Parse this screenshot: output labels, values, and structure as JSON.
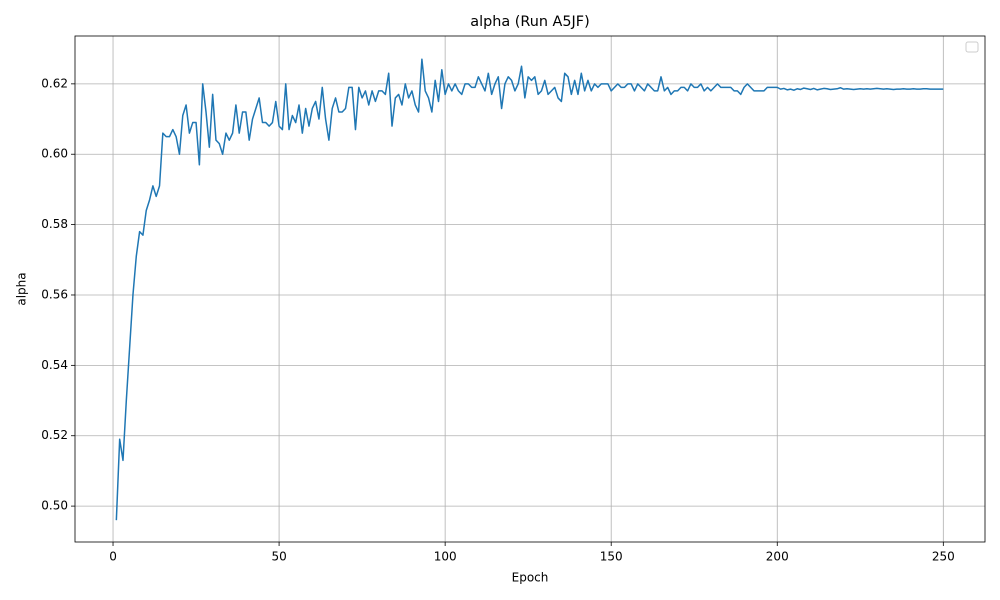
{
  "chart_data": {
    "type": "line",
    "title": "alpha (Run A5JF)",
    "x_label": "Epoch",
    "y_label": "alpha",
    "color": "#1f77b4",
    "grid": true,
    "xlim": [
      -11.45,
      262.55
    ],
    "ylim": [
      0.4898,
      0.6336
    ],
    "xticks": [
      0,
      50,
      100,
      150,
      200,
      250
    ],
    "yticks": [
      {
        "value": 0.5,
        "label": "0.50"
      },
      0.52,
      0.54,
      0.56,
      0.58,
      {
        "value": 0.6,
        "label": "0.60"
      },
      0.62
    ],
    "x": [
      1,
      2,
      3,
      4,
      5,
      6,
      7,
      8,
      9,
      10,
      11,
      12,
      13,
      14,
      15,
      16,
      17,
      18,
      19,
      20,
      21,
      22,
      23,
      24,
      25,
      26,
      27,
      28,
      29,
      30,
      31,
      32,
      33,
      34,
      35,
      36,
      37,
      38,
      39,
      40,
      41,
      42,
      43,
      44,
      45,
      46,
      47,
      48,
      49,
      50,
      51,
      52,
      53,
      54,
      55,
      56,
      57,
      58,
      59,
      60,
      61,
      62,
      63,
      64,
      65,
      66,
      67,
      68,
      69,
      70,
      71,
      72,
      73,
      74,
      75,
      76,
      77,
      78,
      79,
      80,
      81,
      82,
      83,
      84,
      85,
      86,
      87,
      88,
      89,
      90,
      91,
      92,
      93,
      94,
      95,
      96,
      97,
      98,
      99,
      100,
      101,
      102,
      103,
      104,
      105,
      106,
      107,
      108,
      109,
      110,
      111,
      112,
      113,
      114,
      115,
      116,
      117,
      118,
      119,
      120,
      121,
      122,
      123,
      124,
      125,
      126,
      127,
      128,
      129,
      130,
      131,
      132,
      133,
      134,
      135,
      136,
      137,
      138,
      139,
      140,
      141,
      142,
      143,
      144,
      145,
      146,
      147,
      148,
      149,
      150,
      151,
      152,
      153,
      154,
      155,
      156,
      157,
      158,
      159,
      160,
      161,
      162,
      163,
      164,
      165,
      166,
      167,
      168,
      169,
      170,
      171,
      172,
      173,
      174,
      175,
      176,
      177,
      178,
      179,
      180,
      181,
      182,
      183,
      184,
      185,
      186,
      187,
      188,
      189,
      190,
      191,
      192,
      193,
      194,
      195,
      196,
      197,
      198,
      199,
      200,
      201,
      202,
      203,
      204,
      205,
      206,
      207,
      208,
      209,
      210,
      211,
      212,
      213,
      214,
      215,
      216,
      217,
      218,
      219,
      220,
      221,
      222,
      223,
      224,
      225,
      226,
      227,
      228,
      229,
      230,
      231,
      232,
      233,
      234,
      235,
      236,
      237,
      238,
      239,
      240,
      241,
      242,
      243,
      244,
      245,
      246,
      247,
      248,
      249,
      250
    ],
    "values": [
      0.496,
      0.519,
      0.513,
      0.53,
      0.545,
      0.56,
      0.571,
      0.578,
      0.577,
      0.584,
      0.587,
      0.591,
      0.588,
      0.591,
      0.606,
      0.605,
      0.605,
      0.607,
      0.605,
      0.6,
      0.611,
      0.614,
      0.606,
      0.609,
      0.609,
      0.597,
      0.62,
      0.612,
      0.602,
      0.617,
      0.604,
      0.603,
      0.6,
      0.606,
      0.604,
      0.606,
      0.614,
      0.606,
      0.612,
      0.612,
      0.604,
      0.61,
      0.613,
      0.616,
      0.609,
      0.609,
      0.608,
      0.609,
      0.615,
      0.608,
      0.607,
      0.62,
      0.607,
      0.611,
      0.609,
      0.614,
      0.606,
      0.613,
      0.608,
      0.613,
      0.615,
      0.61,
      0.619,
      0.61,
      0.604,
      0.613,
      0.616,
      0.612,
      0.612,
      0.613,
      0.619,
      0.619,
      0.607,
      0.619,
      0.616,
      0.618,
      0.614,
      0.618,
      0.615,
      0.618,
      0.618,
      0.617,
      0.623,
      0.608,
      0.616,
      0.617,
      0.614,
      0.62,
      0.616,
      0.618,
      0.614,
      0.612,
      0.627,
      0.618,
      0.616,
      0.612,
      0.621,
      0.615,
      0.624,
      0.617,
      0.62,
      0.618,
      0.62,
      0.618,
      0.617,
      0.62,
      0.62,
      0.619,
      0.619,
      0.622,
      0.62,
      0.618,
      0.623,
      0.617,
      0.62,
      0.622,
      0.613,
      0.62,
      0.622,
      0.621,
      0.618,
      0.62,
      0.625,
      0.616,
      0.622,
      0.621,
      0.622,
      0.617,
      0.618,
      0.621,
      0.617,
      0.618,
      0.619,
      0.616,
      0.615,
      0.623,
      0.622,
      0.617,
      0.621,
      0.617,
      0.623,
      0.618,
      0.621,
      0.618,
      0.62,
      0.619,
      0.62,
      0.62,
      0.62,
      0.618,
      0.619,
      0.62,
      0.619,
      0.619,
      0.62,
      0.62,
      0.618,
      0.62,
      0.619,
      0.618,
      0.62,
      0.619,
      0.618,
      0.618,
      0.622,
      0.618,
      0.619,
      0.617,
      0.618,
      0.618,
      0.619,
      0.619,
      0.618,
      0.62,
      0.619,
      0.619,
      0.62,
      0.618,
      0.619,
      0.618,
      0.619,
      0.62,
      0.619,
      0.619,
      0.619,
      0.619,
      0.618,
      0.618,
      0.617,
      0.619,
      0.62,
      0.619,
      0.618,
      0.618,
      0.618,
      0.618,
      0.619,
      0.619,
      0.619,
      0.619,
      0.6185,
      0.6187,
      0.6183,
      0.6185,
      0.6182,
      0.6186,
      0.6184,
      0.6188,
      0.6186,
      0.6184,
      0.6187,
      0.6183,
      0.6185,
      0.6187,
      0.6186,
      0.6184,
      0.6185,
      0.6186,
      0.6189,
      0.6185,
      0.6186,
      0.6185,
      0.6184,
      0.6185,
      0.6186,
      0.6185,
      0.6186,
      0.6185,
      0.6186,
      0.6187,
      0.6186,
      0.6185,
      0.6186,
      0.6185,
      0.6184,
      0.6185,
      0.6185,
      0.6186,
      0.6185,
      0.6185,
      0.6186,
      0.6185,
      0.6185,
      0.6186,
      0.6186,
      0.6185,
      0.6185,
      0.6185,
      0.6185,
      0.6185
    ]
  }
}
